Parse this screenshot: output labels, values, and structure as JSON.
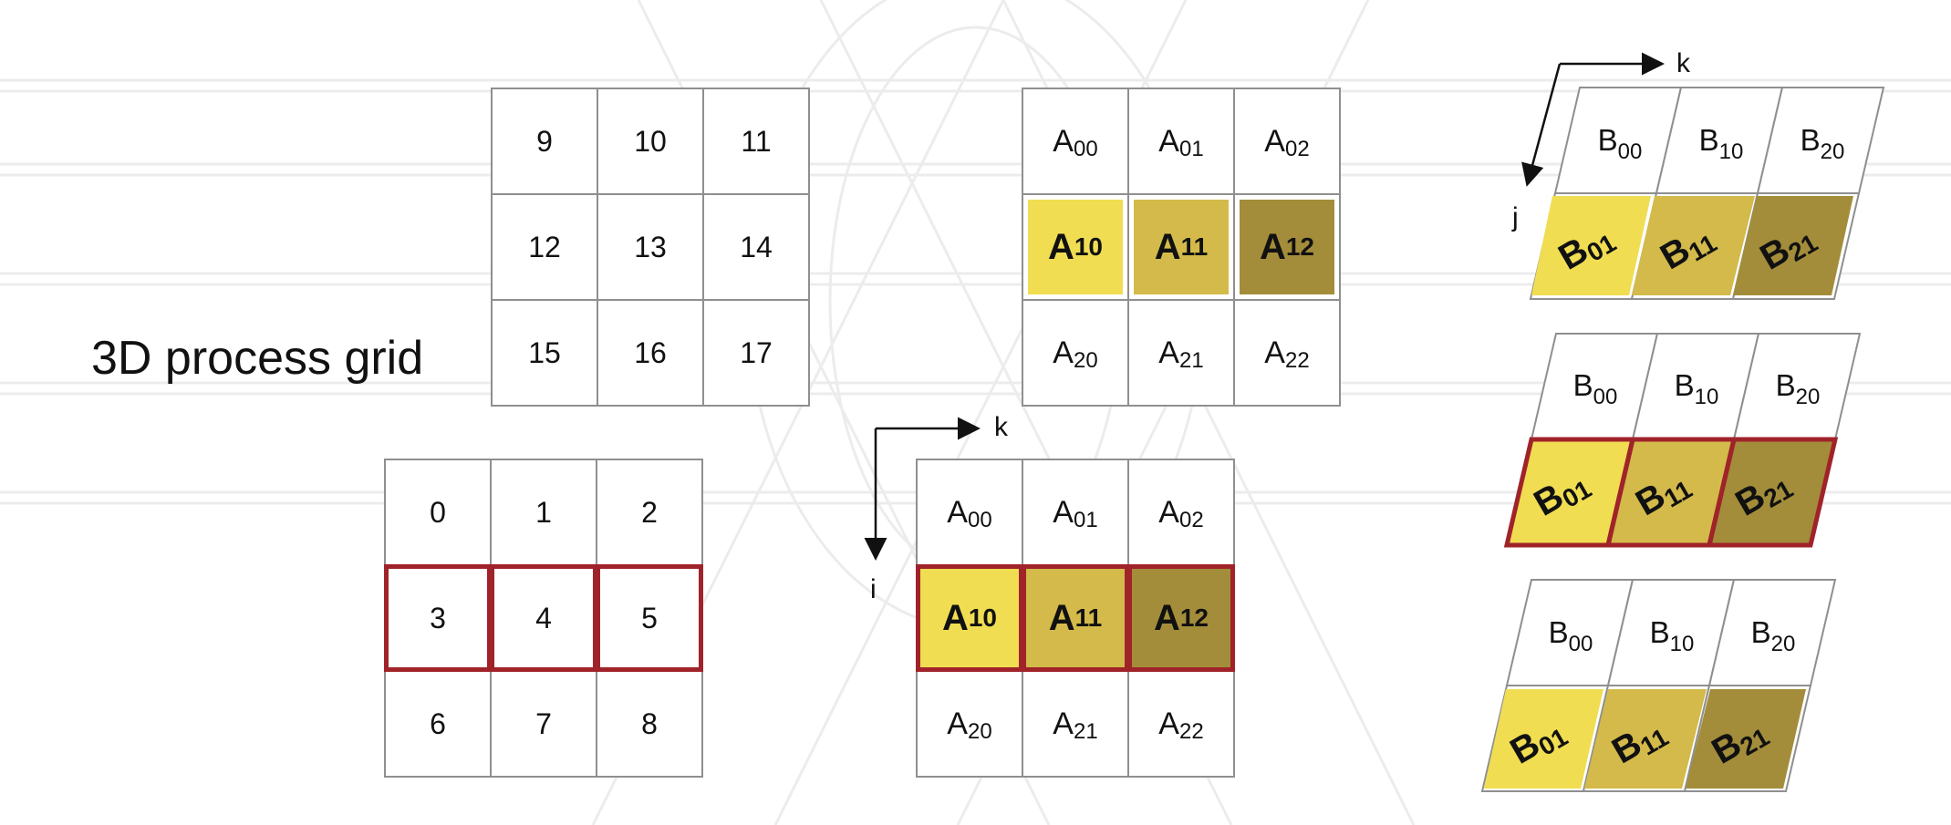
{
  "title": "3D process grid",
  "process_grid": {
    "top": [
      "9",
      "10",
      "11",
      "12",
      "13",
      "14",
      "15",
      "16",
      "17"
    ],
    "bottom": [
      "0",
      "1",
      "2",
      "3",
      "4",
      "5",
      "6",
      "7",
      "8"
    ]
  },
  "a_matrix": {
    "cells": [
      {
        "main": "A",
        "sub": "00"
      },
      {
        "main": "A",
        "sub": "01"
      },
      {
        "main": "A",
        "sub": "02"
      },
      {
        "main": "A",
        "sub": "10"
      },
      {
        "main": "A",
        "sub": "11"
      },
      {
        "main": "A",
        "sub": "12"
      },
      {
        "main": "A",
        "sub": "20"
      },
      {
        "main": "A",
        "sub": "21"
      },
      {
        "main": "A",
        "sub": "22"
      }
    ]
  },
  "b_matrix": {
    "top_row": [
      {
        "main": "B",
        "sub": "00"
      },
      {
        "main": "B",
        "sub": "10"
      },
      {
        "main": "B",
        "sub": "20"
      }
    ],
    "bottom_row": [
      {
        "main": "B",
        "sub": "01"
      },
      {
        "main": "B",
        "sub": "11"
      },
      {
        "main": "B",
        "sub": "21"
      }
    ]
  },
  "axes": {
    "a_horizontal": "k",
    "a_vertical": "i",
    "b_horizontal": "k",
    "b_vertical": "j"
  },
  "colors": {
    "light": "#f0dd52",
    "medium": "#d3ba4a",
    "dark": "#a38d3a",
    "highlight": "#a0232a",
    "grid_line": "#8f8f8f"
  }
}
